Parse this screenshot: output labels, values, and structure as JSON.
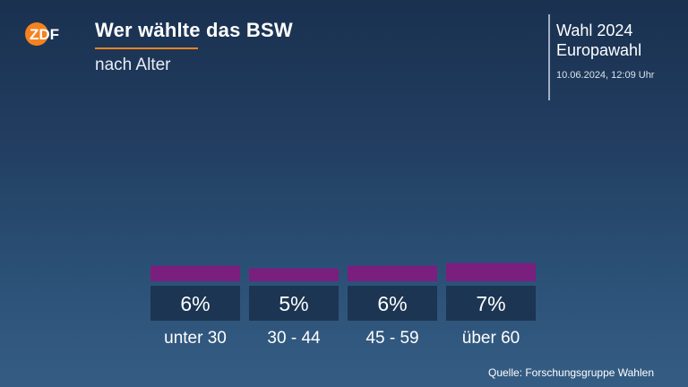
{
  "header": {
    "logo_text": "ZDF",
    "title": "Wer wählte das BSW",
    "subtitle": "nach Alter"
  },
  "side": {
    "line1": "Wahl 2024",
    "line2": "Europawahl",
    "date": "10.06.2024, 12:09 Uhr"
  },
  "source": "Quelle: Forschungsgruppe Wahlen",
  "colors": {
    "accent": "#f5821f",
    "bar": "#7a1f7e",
    "label_box": "#1c3553"
  },
  "chart_data": {
    "type": "bar",
    "categories": [
      "unter 30",
      "30 - 44",
      "45 - 59",
      "über 60"
    ],
    "values": [
      6,
      5,
      6,
      7
    ],
    "value_labels": [
      "6%",
      "5%",
      "6%",
      "7%"
    ],
    "title": "Wer wählte das BSW",
    "subtitle": "nach Alter",
    "unit": "%",
    "xlabel": "",
    "ylabel": "",
    "grid": false,
    "legend": "none"
  }
}
